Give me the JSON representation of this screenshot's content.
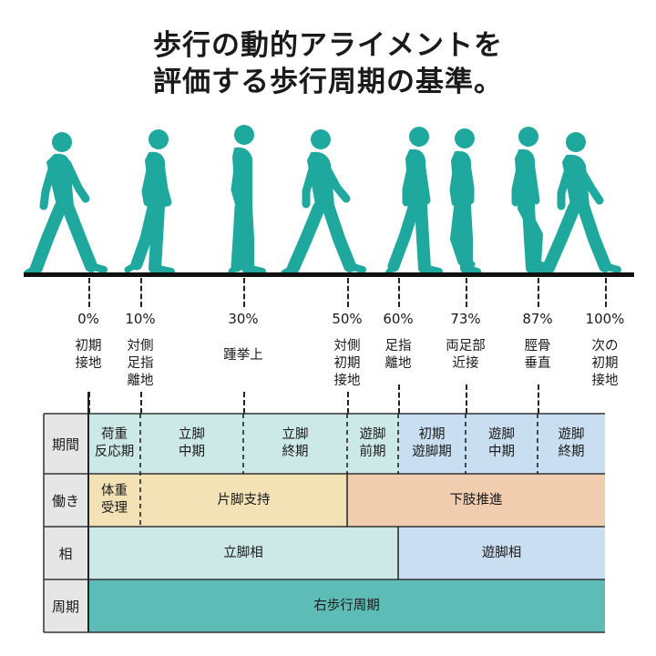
{
  "title": {
    "line1": "歩行の動的アライメントを",
    "line2": "評価する歩行周期の基準。"
  },
  "colors": {
    "figure": "#1fa89d",
    "stance_bg": "#cde9e7",
    "swing_bg": "#c9def0",
    "weight_bg": "#f2e2b6",
    "support_bg": "#f2e2b6",
    "propulsion_bg": "#f1cdb0",
    "cycle_bg": "#5dbdb6",
    "label_bg": "#e6e6e6"
  },
  "events": [
    {
      "pct": "0%",
      "label": "初期\n接地"
    },
    {
      "pct": "10%",
      "label": "対側\n足指\n離地"
    },
    {
      "pct": "30%",
      "label": "踵挙上"
    },
    {
      "pct": "50%",
      "label": "対側\n初期\n接地"
    },
    {
      "pct": "60%",
      "label": "足指\n離地"
    },
    {
      "pct": "73%",
      "label": "両足部\n近接"
    },
    {
      "pct": "87%",
      "label": "脛骨\n垂直"
    },
    {
      "pct": "100%",
      "label": "次の\n初期\n接地"
    }
  ],
  "rows": {
    "period": {
      "label": "期間",
      "cells": [
        "荷重\n反応期",
        "立脚\n中期",
        "立脚\n終期",
        "遊脚\n前期",
        "初期\n遊脚期",
        "遊脚\n中期",
        "遊脚\n終期"
      ]
    },
    "function": {
      "label": "働き",
      "cells": [
        "体重\n受理",
        "片脚支持",
        "下肢推進"
      ]
    },
    "phase": {
      "label": "相",
      "cells": [
        "立脚相",
        "遊脚相"
      ]
    },
    "cycle": {
      "label": "周期",
      "cells": [
        "右歩行周期"
      ]
    }
  }
}
